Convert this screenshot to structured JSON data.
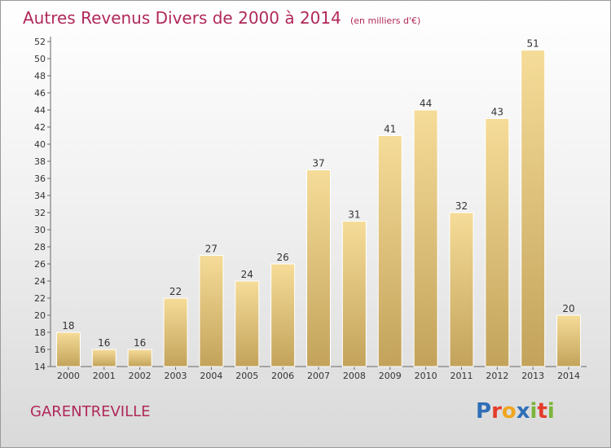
{
  "title": "Autres Revenus Divers de 2000 à 2014",
  "subtitle": "(en milliers d'€)",
  "town": "GARENTREVILLE",
  "logo": {
    "letters": [
      "P",
      "r",
      "o",
      "x",
      "i",
      "t",
      "i"
    ],
    "colors": [
      "#2f6fb7",
      "#e53c2a",
      "#f0a51e",
      "#2f6fb7",
      "#7bb53a",
      "#e53c2a",
      "#7bb53a"
    ]
  },
  "colors": {
    "title": "#b0285a",
    "bar_top": "#f5dc98",
    "bar_bottom": "#c3a35b"
  },
  "chart_data": {
    "type": "bar",
    "categories": [
      "2000",
      "2001",
      "2002",
      "2003",
      "2004",
      "2005",
      "2006",
      "2007",
      "2008",
      "2009",
      "2010",
      "2011",
      "2012",
      "2013",
      "2014"
    ],
    "values": [
      18,
      16,
      16,
      22,
      27,
      24,
      26,
      37,
      31,
      41,
      44,
      32,
      43,
      51,
      20
    ],
    "ylim": [
      14,
      52
    ],
    "yticks": [
      14,
      16,
      18,
      20,
      22,
      24,
      26,
      28,
      30,
      32,
      34,
      36,
      38,
      40,
      42,
      44,
      46,
      48,
      50,
      52
    ],
    "grid": false,
    "legend": "none"
  }
}
